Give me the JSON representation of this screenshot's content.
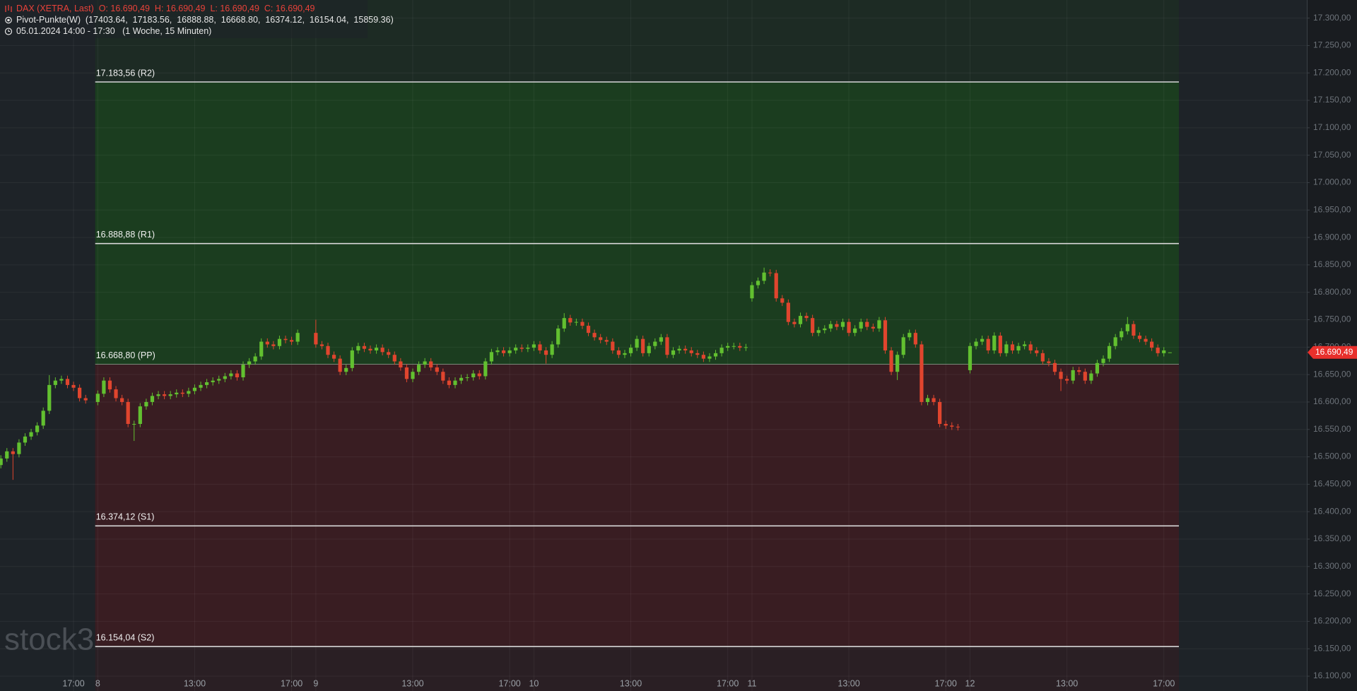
{
  "chart_data": {
    "type": "candlestick",
    "header": [
      "DAX (XETRA, Last)  O: 16.690,49  H: 16.690,49  L: 16.690,49  C: 16.690,49",
      "Pivot-Punkte(W)  (17403.64,  17183.56,  16888.88,  16668.80,  16374.12,  16154.04,  15859.36)",
      "05.01.2024 14:00 - 17:30   (1 Woche, 15 Minuten)"
    ],
    "watermark": "stock3",
    "up_color": "#62c030",
    "down_color": "#e0452e",
    "xlim": [
      -16.14,
      199.6
    ],
    "ylim": [
      16073,
      17333
    ],
    "grid": true,
    "xticks": [
      {
        "value": -4,
        "label": "17:00"
      },
      {
        "value": 0,
        "label": "8"
      },
      {
        "value": 16,
        "label": "13:00"
      },
      {
        "value": 32,
        "label": "17:00"
      },
      {
        "value": 36,
        "label": "9"
      },
      {
        "value": 52,
        "label": "13:00"
      },
      {
        "value": 68,
        "label": "17:00"
      },
      {
        "value": 72,
        "label": "10"
      },
      {
        "value": 88,
        "label": "13:00"
      },
      {
        "value": 104,
        "label": "17:00"
      },
      {
        "value": 108,
        "label": "11"
      },
      {
        "value": 124,
        "label": "13:00"
      },
      {
        "value": 140,
        "label": "17:00"
      },
      {
        "value": 144,
        "label": "12"
      },
      {
        "value": 160,
        "label": "13:00"
      },
      {
        "value": 176,
        "label": "17:00"
      }
    ],
    "yticks": [
      {
        "value": 17300,
        "label": "17.300,00"
      },
      {
        "value": 17250,
        "label": "17.250,00"
      },
      {
        "value": 17200,
        "label": "17.200,00"
      },
      {
        "value": 17150,
        "label": "17.150,00"
      },
      {
        "value": 17100,
        "label": "17.100,00"
      },
      {
        "value": 17050,
        "label": "17.050,00"
      },
      {
        "value": 17000,
        "label": "17.000,00"
      },
      {
        "value": 16950,
        "label": "16.950,00"
      },
      {
        "value": 16900,
        "label": "16.900,00"
      },
      {
        "value": 16850,
        "label": "16.850,00"
      },
      {
        "value": 16800,
        "label": "16.800,00"
      },
      {
        "value": 16750,
        "label": "16.750,00"
      },
      {
        "value": 16700,
        "label": "16.700,00"
      },
      {
        "value": 16650,
        "label": "16.650,00"
      },
      {
        "value": 16600,
        "label": "16.600,00"
      },
      {
        "value": 16550,
        "label": "16.550,00"
      },
      {
        "value": 16500,
        "label": "16.500,00"
      },
      {
        "value": 16450,
        "label": "16.450,00"
      },
      {
        "value": 16400,
        "label": "16.400,00"
      },
      {
        "value": 16350,
        "label": "16.350,00"
      },
      {
        "value": 16300,
        "label": "16.300,00"
      },
      {
        "value": 16250,
        "label": "16.250,00"
      },
      {
        "value": 16200,
        "label": "16.200,00"
      },
      {
        "value": 16150,
        "label": "16.150,00"
      },
      {
        "value": 16100,
        "label": "16.100,00"
      }
    ],
    "pivots": [
      {
        "value": 17183.56,
        "label": "17.183,56 (R2)"
      },
      {
        "value": 16888.88,
        "label": "16.888,88 (R1)"
      },
      {
        "value": 16668.8,
        "label": "16.668,80 (PP)"
      },
      {
        "value": 16374.12,
        "label": "16.374,12 (S1)"
      },
      {
        "value": 16154.04,
        "label": "16.154,04 (S2)"
      }
    ],
    "last_price": {
      "value": 16690.49,
      "label": "16.690,49"
    },
    "x": [
      -16,
      -15,
      -14,
      -13,
      -12,
      -11,
      -10,
      -9,
      -8,
      -7,
      -6,
      -5,
      -4,
      -3,
      -2,
      0,
      1,
      2,
      3,
      4,
      5,
      6,
      7,
      8,
      9,
      10,
      11,
      12,
      13,
      14,
      15,
      16,
      17,
      18,
      19,
      20,
      21,
      22,
      23,
      24,
      25,
      26,
      27,
      28,
      29,
      30,
      31,
      32,
      33,
      36,
      37,
      38,
      39,
      40,
      41,
      42,
      43,
      44,
      45,
      46,
      47,
      48,
      49,
      50,
      51,
      52,
      53,
      54,
      55,
      56,
      57,
      58,
      59,
      60,
      61,
      62,
      63,
      64,
      65,
      66,
      67,
      68,
      69,
      70,
      71,
      72,
      73,
      74,
      75,
      76,
      77,
      78,
      79,
      80,
      81,
      82,
      83,
      84,
      85,
      86,
      87,
      88,
      89,
      90,
      91,
      92,
      93,
      94,
      95,
      96,
      97,
      98,
      99,
      100,
      101,
      102,
      103,
      104,
      105,
      106,
      107,
      108,
      109,
      110,
      111,
      112,
      113,
      114,
      115,
      116,
      117,
      118,
      119,
      120,
      121,
      122,
      123,
      124,
      125,
      126,
      127,
      128,
      129,
      130,
      131,
      132,
      133,
      134,
      135,
      136,
      137,
      138,
      139,
      140,
      141,
      142,
      144,
      145,
      146,
      147,
      148,
      149,
      150,
      151,
      152,
      153,
      154,
      155,
      156,
      157,
      158,
      159,
      160,
      161,
      162,
      163,
      164,
      165,
      166,
      167,
      168,
      169,
      170,
      171,
      172,
      173,
      174,
      175,
      176,
      177
    ],
    "open": [
      16485,
      16497,
      16510,
      16505,
      16526,
      16537,
      16545,
      16557,
      16584,
      16631,
      16639,
      16642,
      16631,
      16626,
      16607,
      16600,
      16615,
      16639,
      16623,
      16607,
      16600,
      16560,
      16560,
      16592,
      16600,
      16611,
      16614,
      16611,
      16614,
      16617,
      16615,
      16620,
      16626,
      16631,
      16636,
      16639,
      16642,
      16647,
      16652,
      16645,
      16668,
      16674,
      16683,
      16710,
      16705,
      16702,
      16715,
      16713,
      16710,
      16726,
      16705,
      16702,
      16686,
      16679,
      16655,
      16662,
      16694,
      16702,
      16697,
      16694,
      16699,
      16691,
      16686,
      16674,
      16663,
      16642,
      16655,
      16668,
      16674,
      16663,
      16655,
      16639,
      16631,
      16639,
      16644,
      16645,
      16652,
      16647,
      16674,
      16691,
      16694,
      16689,
      16694,
      16699,
      16697,
      16699,
      16705,
      16694,
      16686,
      16705,
      16734,
      16753,
      16745,
      16746,
      16739,
      16726,
      16718,
      16713,
      16710,
      16694,
      16686,
      16689,
      16699,
      16715,
      16689,
      16702,
      16710,
      16718,
      16686,
      16694,
      16697,
      16694,
      16689,
      16686,
      16679,
      16683,
      16689,
      16699,
      16702,
      16702,
      16699,
      16789,
      16813,
      16821,
      16836,
      16835,
      16789,
      16781,
      16746,
      16742,
      16757,
      16753,
      16726,
      16731,
      16734,
      16742,
      16737,
      16746,
      16726,
      16734,
      16746,
      16737,
      16734,
      16749,
      16694,
      16655,
      16686,
      16718,
      16726,
      16705,
      16600,
      16607,
      16600,
      16560,
      16557,
      16555,
      16658,
      16702,
      16710,
      16715,
      16694,
      16721,
      16689,
      16705,
      16694,
      16702,
      16705,
      16694,
      16689,
      16674,
      16671,
      16655,
      16642,
      16639,
      16658,
      16655,
      16639,
      16652,
      16671,
      16679,
      16702,
      16718,
      16729,
      16742,
      16721,
      16715,
      16710,
      16699,
      16689,
      16690.49
    ],
    "high": [
      16503,
      16516,
      16516,
      16532,
      16543,
      16551,
      16563,
      16590,
      16649,
      16645,
      16648,
      16648,
      16637,
      16632,
      16613,
      16621,
      16645,
      16645,
      16629,
      16613,
      16606,
      16566,
      16598,
      16606,
      16617,
      16620,
      16620,
      16620,
      16623,
      16623,
      16626,
      16632,
      16637,
      16642,
      16645,
      16648,
      16653,
      16658,
      16658,
      16674,
      16680,
      16689,
      16716,
      16716,
      16711,
      16721,
      16721,
      16719,
      16732,
      16750,
      16711,
      16708,
      16692,
      16685,
      16668,
      16700,
      16708,
      16708,
      16703,
      16705,
      16705,
      16697,
      16692,
      16680,
      16669,
      16661,
      16674,
      16680,
      16680,
      16669,
      16661,
      16645,
      16645,
      16650,
      16651,
      16658,
      16658,
      16680,
      16697,
      16700,
      16700,
      16700,
      16705,
      16705,
      16705,
      16711,
      16711,
      16700,
      16711,
      16740,
      16762,
      16759,
      16752,
      16752,
      16745,
      16732,
      16724,
      16719,
      16716,
      16700,
      16695,
      16705,
      16721,
      16721,
      16708,
      16716,
      16724,
      16724,
      16700,
      16703,
      16703,
      16700,
      16695,
      16692,
      16689,
      16695,
      16705,
      16708,
      16708,
      16708,
      16706,
      16819,
      16827,
      16845,
      16842,
      16841,
      16795,
      16787,
      16752,
      16763,
      16763,
      16759,
      16737,
      16740,
      16748,
      16748,
      16752,
      16752,
      16740,
      16752,
      16752,
      16743,
      16755,
      16755,
      16700,
      16692,
      16724,
      16732,
      16732,
      16711,
      16613,
      16613,
      16606,
      16566,
      16563,
      16560,
      16708,
      16716,
      16721,
      16721,
      16727,
      16727,
      16711,
      16711,
      16708,
      16711,
      16711,
      16700,
      16695,
      16680,
      16677,
      16661,
      16648,
      16664,
      16664,
      16661,
      16658,
      16677,
      16685,
      16708,
      16724,
      16735,
      16755,
      16748,
      16727,
      16721,
      16716,
      16705,
      16700,
      16690.49
    ],
    "low": [
      16479,
      16491,
      16458,
      16499,
      16520,
      16531,
      16539,
      16551,
      16578,
      16625,
      16633,
      16625,
      16620,
      16601,
      16597,
      16594,
      16609,
      16617,
      16601,
      16594,
      16554,
      16529,
      16554,
      16586,
      16594,
      16605,
      16605,
      16605,
      16608,
      16609,
      16609,
      16614,
      16620,
      16625,
      16630,
      16633,
      16636,
      16641,
      16639,
      16639,
      16662,
      16668,
      16677,
      16699,
      16696,
      16696,
      16707,
      16704,
      16704,
      16699,
      16696,
      16680,
      16673,
      16649,
      16649,
      16656,
      16688,
      16691,
      16688,
      16688,
      16685,
      16680,
      16668,
      16657,
      16636,
      16636,
      16649,
      16662,
      16657,
      16649,
      16633,
      16625,
      16625,
      16633,
      16638,
      16639,
      16641,
      16641,
      16668,
      16685,
      16683,
      16683,
      16688,
      16691,
      16691,
      16693,
      16688,
      16670,
      16680,
      16699,
      16728,
      16739,
      16739,
      16733,
      16720,
      16712,
      16707,
      16704,
      16688,
      16680,
      16680,
      16683,
      16693,
      16683,
      16683,
      16696,
      16704,
      16680,
      16680,
      16688,
      16688,
      16683,
      16680,
      16673,
      16673,
      16677,
      16683,
      16693,
      16696,
      16693,
      16693,
      16783,
      16807,
      16815,
      16829,
      16783,
      16775,
      16740,
      16736,
      16736,
      16747,
      16720,
      16720,
      16725,
      16728,
      16731,
      16731,
      16720,
      16720,
      16728,
      16731,
      16728,
      16728,
      16688,
      16649,
      16640,
      16680,
      16712,
      16699,
      16594,
      16594,
      16594,
      16554,
      16551,
      16549,
      16548,
      16652,
      16696,
      16704,
      16688,
      16688,
      16683,
      16683,
      16688,
      16688,
      16696,
      16688,
      16683,
      16668,
      16665,
      16649,
      16620,
      16633,
      16633,
      16649,
      16633,
      16633,
      16646,
      16665,
      16673,
      16696,
      16712,
      16723,
      16715,
      16709,
      16704,
      16693,
      16683,
      16683,
      16690.49
    ],
    "close": [
      16497,
      16510,
      16505,
      16526,
      16537,
      16545,
      16557,
      16584,
      16631,
      16639,
      16642,
      16631,
      16626,
      16607,
      16603,
      16615,
      16639,
      16623,
      16607,
      16600,
      16560,
      16560,
      16592,
      16600,
      16611,
      16614,
      16611,
      16614,
      16617,
      16615,
      16620,
      16626,
      16631,
      16636,
      16639,
      16642,
      16647,
      16652,
      16645,
      16668,
      16674,
      16683,
      16710,
      16705,
      16702,
      16715,
      16713,
      16710,
      16726,
      16705,
      16702,
      16686,
      16679,
      16655,
      16662,
      16694,
      16702,
      16697,
      16694,
      16699,
      16691,
      16686,
      16674,
      16663,
      16642,
      16655,
      16668,
      16674,
      16663,
      16655,
      16639,
      16631,
      16639,
      16644,
      16645,
      16652,
      16647,
      16674,
      16691,
      16694,
      16689,
      16694,
      16699,
      16697,
      16699,
      16705,
      16694,
      16686,
      16705,
      16734,
      16753,
      16745,
      16746,
      16739,
      16726,
      16718,
      16713,
      16710,
      16694,
      16686,
      16689,
      16699,
      16715,
      16689,
      16702,
      16710,
      16718,
      16686,
      16694,
      16697,
      16694,
      16689,
      16686,
      16679,
      16683,
      16689,
      16699,
      16702,
      16702,
      16699,
      16700,
      16813,
      16821,
      16836,
      16835,
      16789,
      16781,
      16746,
      16742,
      16757,
      16753,
      16726,
      16731,
      16734,
      16742,
      16737,
      16746,
      16726,
      16734,
      16746,
      16737,
      16734,
      16749,
      16694,
      16655,
      16686,
      16718,
      16726,
      16705,
      16600,
      16607,
      16600,
      16560,
      16557,
      16555,
      16554,
      16702,
      16710,
      16715,
      16694,
      16721,
      16689,
      16705,
      16694,
      16702,
      16705,
      16694,
      16689,
      16674,
      16671,
      16655,
      16642,
      16639,
      16658,
      16655,
      16639,
      16652,
      16671,
      16679,
      16702,
      16718,
      16729,
      16742,
      16721,
      16715,
      16710,
      16699,
      16689,
      16694,
      16690.49
    ]
  }
}
